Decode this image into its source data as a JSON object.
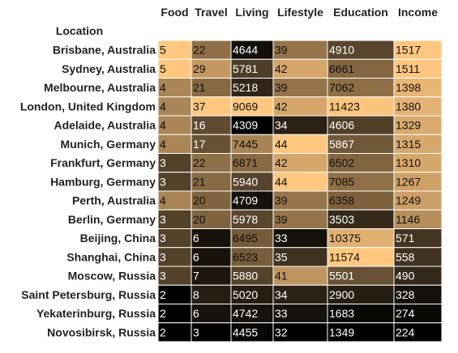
{
  "chart_data": {
    "type": "heatmap",
    "index_name": "Location",
    "columns": [
      "Food",
      "Travel",
      "Living",
      "Lifestyle",
      "Education",
      "Income"
    ],
    "rows": [
      {
        "label": "Brisbane, Australia",
        "values": [
          5,
          22,
          4644,
          39,
          4910,
          1517
        ]
      },
      {
        "label": "Sydney, Australia",
        "values": [
          5,
          29,
          5781,
          42,
          6661,
          1511
        ]
      },
      {
        "label": "Melbourne, Australia",
        "values": [
          4,
          21,
          5218,
          39,
          7062,
          1398
        ]
      },
      {
        "label": "London, United Kingdom",
        "values": [
          4,
          37,
          9069,
          42,
          11423,
          1380
        ]
      },
      {
        "label": "Adelaide, Australia",
        "values": [
          4,
          16,
          4309,
          34,
          4606,
          1329
        ]
      },
      {
        "label": "Munich, Germany",
        "values": [
          4,
          17,
          7445,
          44,
          5867,
          1315
        ]
      },
      {
        "label": "Frankfurt, Germany",
        "values": [
          3,
          22,
          6871,
          42,
          6502,
          1310
        ]
      },
      {
        "label": "Hamburg, Germany",
        "values": [
          3,
          21,
          5940,
          44,
          7085,
          1267
        ]
      },
      {
        "label": "Perth, Australia",
        "values": [
          4,
          20,
          4709,
          39,
          6358,
          1249
        ]
      },
      {
        "label": "Berlin, Germany",
        "values": [
          3,
          20,
          5978,
          39,
          3503,
          1146
        ]
      },
      {
        "label": "Beijing, China",
        "values": [
          3,
          6,
          6495,
          33,
          10375,
          571
        ]
      },
      {
        "label": "Shanghai, China",
        "values": [
          3,
          6,
          6523,
          35,
          11574,
          558
        ]
      },
      {
        "label": "Moscow, Russia",
        "values": [
          3,
          7,
          5880,
          41,
          5501,
          490
        ]
      },
      {
        "label": "Saint Petersburg, Russia",
        "values": [
          2,
          8,
          5020,
          34,
          2900,
          328
        ]
      },
      {
        "label": "Yekaterinburg, Russia",
        "values": [
          2,
          6,
          4742,
          33,
          1683,
          274
        ]
      },
      {
        "label": "Novosibirsk, Russia",
        "values": [
          2,
          3,
          4455,
          32,
          1349,
          224
        ]
      }
    ],
    "colormap": {
      "name": "copper",
      "low": "#000000",
      "high": "#ffc77f",
      "scale": "per-column"
    }
  }
}
